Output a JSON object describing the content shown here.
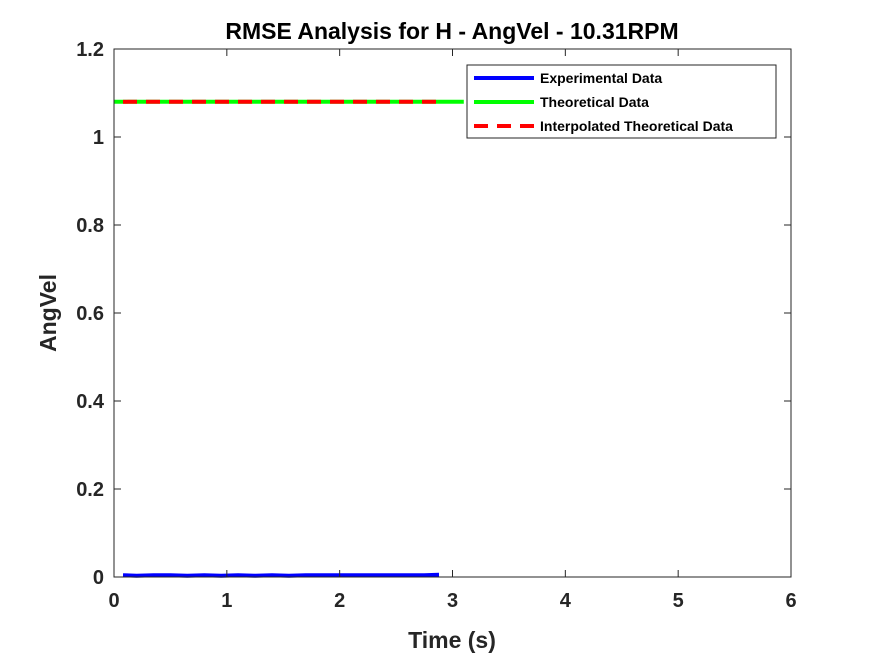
{
  "chart_data": {
    "type": "line",
    "title": "RMSE Analysis for H - AngVel - 10.31RPM",
    "xlabel": "Time (s)",
    "ylabel": "AngVel",
    "xlim": [
      0,
      6
    ],
    "ylim": [
      0,
      1.2
    ],
    "xticks": [
      0,
      1,
      2,
      3,
      4,
      5,
      6
    ],
    "xtick_labels": [
      "0",
      "1",
      "2",
      "3",
      "4",
      "5",
      "6"
    ],
    "yticks": [
      0,
      0.2,
      0.4,
      0.6,
      0.8,
      1.0,
      1.2
    ],
    "ytick_labels": [
      "0",
      "0.2",
      "0.4",
      "0.6",
      "0.8",
      "1",
      "1.2"
    ],
    "grid": false,
    "legend_position": "top-right",
    "series": [
      {
        "name": "Experimental Data",
        "color": "#0000ff",
        "style": "solid",
        "x": [
          0.08,
          0.2,
          0.35,
          0.5,
          0.65,
          0.8,
          0.95,
          1.1,
          1.25,
          1.4,
          1.55,
          1.7,
          1.85,
          2.0,
          2.2,
          2.4,
          2.6,
          2.75,
          2.88
        ],
        "y": [
          0.004,
          0.003,
          0.004,
          0.004,
          0.003,
          0.004,
          0.003,
          0.004,
          0.003,
          0.004,
          0.003,
          0.004,
          0.004,
          0.004,
          0.004,
          0.004,
          0.004,
          0.004,
          0.005
        ]
      },
      {
        "name": "Theoretical Data",
        "color": "#00ff00",
        "style": "solid",
        "x": [
          0,
          3.1
        ],
        "y": [
          1.08,
          1.08
        ]
      },
      {
        "name": "Interpolated Theoretical Data",
        "color": "#ff0000",
        "style": "dashed",
        "x": [
          0.08,
          2.88
        ],
        "y": [
          1.08,
          1.08
        ]
      }
    ]
  }
}
